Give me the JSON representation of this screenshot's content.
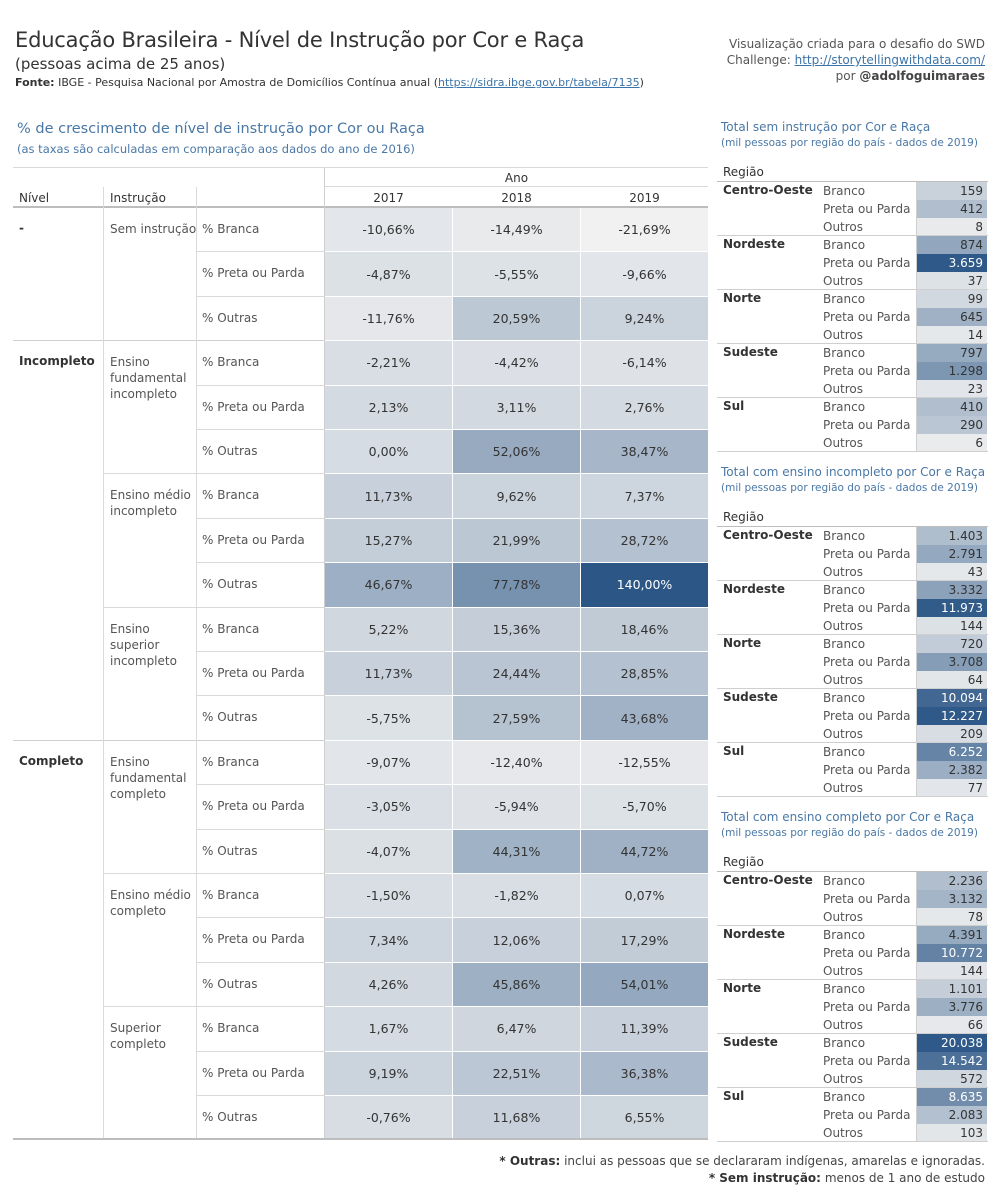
{
  "header": {
    "title": "Educação Brasileira - Nível de Instrução por Cor e Raça",
    "subtitle": "(pessoas acima de 25 anos)",
    "source_label": "Fonte:",
    "source_text": "IBGE - Pesquisa Nacional por Amostra de Domicílios Contínua anual (",
    "source_link": "https://sidra.ibge.gov.br/tabela/7135",
    "source_close": ")",
    "credit_line1": "Visualização criada para o desafio do SWD",
    "credit_line2_label": "Challenge:",
    "credit_line2_link": "http://storytellingwithdata.com/",
    "credit_line3_prefix": "por",
    "credit_line3_author": "@adolfoguimaraes"
  },
  "notes": {
    "line1_label": "* Outras:",
    "line1_text": "inclui as pessoas que se declararam indígenas, amarelas e ignoradas.",
    "line2_label": "* Sem instrução:",
    "line2_text": "menos de 1 ano de estudo"
  },
  "colors": {
    "cell_min": "#f1f1f1",
    "cell_max": "#2b5686",
    "accent": "#4a78a6"
  },
  "chart_data": [
    {
      "type": "heatmap",
      "title": "% de crescimento de nível de instrução por Cor ou Raça",
      "subtitle": "(as taxas são calculadas em comparação aos dados do ano de 2016)",
      "col_headers": {
        "nivel": "Nível",
        "instrucao": "Instrução",
        "ano": "Ano"
      },
      "years": [
        "2017",
        "2018",
        "2019"
      ],
      "groups": [
        {
          "nivel": "-",
          "items": [
            {
              "instrucao": [
                "Sem instrução"
              ],
              "rows": [
                {
                  "metric": "% Branca",
                  "values": [
                    "-10,66%",
                    "-14,49%",
                    "-21,69%"
                  ],
                  "num": [
                    -10.66,
                    -14.49,
                    -21.69
                  ]
                },
                {
                  "metric": "% Preta ou Parda",
                  "values": [
                    "-4,87%",
                    "-5,55%",
                    "-9,66%"
                  ],
                  "num": [
                    -4.87,
                    -5.55,
                    -9.66
                  ]
                },
                {
                  "metric": "% Outras",
                  "values": [
                    "-11,76%",
                    "20,59%",
                    "9,24%"
                  ],
                  "num": [
                    -11.76,
                    20.59,
                    9.24
                  ]
                }
              ]
            }
          ]
        },
        {
          "nivel": "Incompleto",
          "items": [
            {
              "instrucao": [
                "Ensino",
                "fundamental",
                "incompleto"
              ],
              "rows": [
                {
                  "metric": "% Branca",
                  "values": [
                    "-2,21%",
                    "-4,42%",
                    "-6,14%"
                  ],
                  "num": [
                    -2.21,
                    -4.42,
                    -6.14
                  ]
                },
                {
                  "metric": "% Preta ou Parda",
                  "values": [
                    "2,13%",
                    "3,11%",
                    "2,76%"
                  ],
                  "num": [
                    2.13,
                    3.11,
                    2.76
                  ]
                },
                {
                  "metric": "% Outras",
                  "values": [
                    "0,00%",
                    "52,06%",
                    "38,47%"
                  ],
                  "num": [
                    0.0,
                    52.06,
                    38.47
                  ]
                }
              ]
            },
            {
              "instrucao": [
                "Ensino médio",
                "incompleto"
              ],
              "rows": [
                {
                  "metric": "% Branca",
                  "values": [
                    "11,73%",
                    "9,62%",
                    "7,37%"
                  ],
                  "num": [
                    11.73,
                    9.62,
                    7.37
                  ]
                },
                {
                  "metric": "% Preta ou Parda",
                  "values": [
                    "15,27%",
                    "21,99%",
                    "28,72%"
                  ],
                  "num": [
                    15.27,
                    21.99,
                    28.72
                  ]
                },
                {
                  "metric": "% Outras",
                  "values": [
                    "46,67%",
                    "77,78%",
                    "140,00%"
                  ],
                  "num": [
                    46.67,
                    77.78,
                    140.0
                  ]
                }
              ]
            },
            {
              "instrucao": [
                "Ensino",
                "superior",
                "incompleto"
              ],
              "rows": [
                {
                  "metric": "% Branca",
                  "values": [
                    "5,22%",
                    "15,36%",
                    "18,46%"
                  ],
                  "num": [
                    5.22,
                    15.36,
                    18.46
                  ]
                },
                {
                  "metric": "% Preta ou Parda",
                  "values": [
                    "11,73%",
                    "24,44%",
                    "28,85%"
                  ],
                  "num": [
                    11.73,
                    24.44,
                    28.85
                  ]
                },
                {
                  "metric": "% Outras",
                  "values": [
                    "-5,75%",
                    "27,59%",
                    "43,68%"
                  ],
                  "num": [
                    -5.75,
                    27.59,
                    43.68
                  ]
                }
              ]
            }
          ]
        },
        {
          "nivel": "Completo",
          "items": [
            {
              "instrucao": [
                "Ensino",
                "fundamental",
                "completo"
              ],
              "rows": [
                {
                  "metric": "% Branca",
                  "values": [
                    "-9,07%",
                    "-12,40%",
                    "-12,55%"
                  ],
                  "num": [
                    -9.07,
                    -12.4,
                    -12.55
                  ]
                },
                {
                  "metric": "% Preta ou Parda",
                  "values": [
                    "-3,05%",
                    "-5,94%",
                    "-5,70%"
                  ],
                  "num": [
                    -3.05,
                    -5.94,
                    -5.7
                  ]
                },
                {
                  "metric": "% Outras",
                  "values": [
                    "-4,07%",
                    "44,31%",
                    "44,72%"
                  ],
                  "num": [
                    -4.07,
                    44.31,
                    44.72
                  ]
                }
              ]
            },
            {
              "instrucao": [
                "Ensino médio",
                "completo"
              ],
              "rows": [
                {
                  "metric": "% Branca",
                  "values": [
                    "-1,50%",
                    "-1,82%",
                    "0,07%"
                  ],
                  "num": [
                    -1.5,
                    -1.82,
                    0.07
                  ]
                },
                {
                  "metric": "% Preta ou Parda",
                  "values": [
                    "7,34%",
                    "12,06%",
                    "17,29%"
                  ],
                  "num": [
                    7.34,
                    12.06,
                    17.29
                  ]
                },
                {
                  "metric": "% Outras",
                  "values": [
                    "4,26%",
                    "45,86%",
                    "54,01%"
                  ],
                  "num": [
                    4.26,
                    45.86,
                    54.01
                  ]
                }
              ]
            },
            {
              "instrucao": [
                "Superior",
                "completo"
              ],
              "rows": [
                {
                  "metric": "% Branca",
                  "values": [
                    "1,67%",
                    "6,47%",
                    "11,39%"
                  ],
                  "num": [
                    1.67,
                    6.47,
                    11.39
                  ]
                },
                {
                  "metric": "% Preta ou Parda",
                  "values": [
                    "9,19%",
                    "22,51%",
                    "36,38%"
                  ],
                  "num": [
                    9.19,
                    22.51,
                    36.38
                  ]
                },
                {
                  "metric": "% Outras",
                  "values": [
                    "-0,76%",
                    "11,68%",
                    "6,55%"
                  ],
                  "num": [
                    -0.76,
                    11.68,
                    6.55
                  ]
                }
              ]
            }
          ]
        }
      ]
    },
    {
      "type": "heatmap",
      "title": "Total sem instrução por Cor e Raça",
      "subtitle": "(mil pessoas por região do país - dados de 2019)",
      "region_header": "Região",
      "regions": [
        {
          "name": "Centro-Oeste",
          "rows": [
            {
              "cat": "Branco",
              "value": "159",
              "num": 159
            },
            {
              "cat": "Preta ou Parda",
              "value": "412",
              "num": 412
            },
            {
              "cat": "Outros",
              "value": "8",
              "num": 8
            }
          ]
        },
        {
          "name": "Nordeste",
          "rows": [
            {
              "cat": "Branco",
              "value": "874",
              "num": 874
            },
            {
              "cat": "Preta ou Parda",
              "value": "3.659",
              "num": 3659
            },
            {
              "cat": "Outros",
              "value": "37",
              "num": 37
            }
          ]
        },
        {
          "name": "Norte",
          "rows": [
            {
              "cat": "Branco",
              "value": "99",
              "num": 99
            },
            {
              "cat": "Preta ou Parda",
              "value": "645",
              "num": 645
            },
            {
              "cat": "Outros",
              "value": "14",
              "num": 14
            }
          ]
        },
        {
          "name": "Sudeste",
          "rows": [
            {
              "cat": "Branco",
              "value": "797",
              "num": 797
            },
            {
              "cat": "Preta ou Parda",
              "value": "1.298",
              "num": 1298
            },
            {
              "cat": "Outros",
              "value": "23",
              "num": 23
            }
          ]
        },
        {
          "name": "Sul",
          "rows": [
            {
              "cat": "Branco",
              "value": "410",
              "num": 410
            },
            {
              "cat": "Preta ou Parda",
              "value": "290",
              "num": 290
            },
            {
              "cat": "Outros",
              "value": "6",
              "num": 6
            }
          ]
        }
      ]
    },
    {
      "type": "heatmap",
      "title": "Total com ensino incompleto por Cor e Raça",
      "subtitle": "(mil pessoas por região do país - dados de 2019)",
      "region_header": "Região",
      "regions": [
        {
          "name": "Centro-Oeste",
          "rows": [
            {
              "cat": "Branco",
              "value": "1.403",
              "num": 1403
            },
            {
              "cat": "Preta ou Parda",
              "value": "2.791",
              "num": 2791
            },
            {
              "cat": "Outros",
              "value": "43",
              "num": 43
            }
          ]
        },
        {
          "name": "Nordeste",
          "rows": [
            {
              "cat": "Branco",
              "value": "3.332",
              "num": 3332
            },
            {
              "cat": "Preta ou Parda",
              "value": "11.973",
              "num": 11973
            },
            {
              "cat": "Outros",
              "value": "144",
              "num": 144
            }
          ]
        },
        {
          "name": "Norte",
          "rows": [
            {
              "cat": "Branco",
              "value": "720",
              "num": 720
            },
            {
              "cat": "Preta ou Parda",
              "value": "3.708",
              "num": 3708
            },
            {
              "cat": "Outros",
              "value": "64",
              "num": 64
            }
          ]
        },
        {
          "name": "Sudeste",
          "rows": [
            {
              "cat": "Branco",
              "value": "10.094",
              "num": 10094
            },
            {
              "cat": "Preta ou Parda",
              "value": "12.227",
              "num": 12227
            },
            {
              "cat": "Outros",
              "value": "209",
              "num": 209
            }
          ]
        },
        {
          "name": "Sul",
          "rows": [
            {
              "cat": "Branco",
              "value": "6.252",
              "num": 6252
            },
            {
              "cat": "Preta ou Parda",
              "value": "2.382",
              "num": 2382
            },
            {
              "cat": "Outros",
              "value": "77",
              "num": 77
            }
          ]
        }
      ]
    },
    {
      "type": "heatmap",
      "title": "Total com ensino completo por Cor e Raça",
      "subtitle": "(mil pessoas por região do país - dados de 2019)",
      "region_header": "Região",
      "regions": [
        {
          "name": "Centro-Oeste",
          "rows": [
            {
              "cat": "Branco",
              "value": "2.236",
              "num": 2236
            },
            {
              "cat": "Preta ou Parda",
              "value": "3.132",
              "num": 3132
            },
            {
              "cat": "Outros",
              "value": "78",
              "num": 78
            }
          ]
        },
        {
          "name": "Nordeste",
          "rows": [
            {
              "cat": "Branco",
              "value": "4.391",
              "num": 4391
            },
            {
              "cat": "Preta ou Parda",
              "value": "10.772",
              "num": 10772
            },
            {
              "cat": "Outros",
              "value": "144",
              "num": 144
            }
          ]
        },
        {
          "name": "Norte",
          "rows": [
            {
              "cat": "Branco",
              "value": "1.101",
              "num": 1101
            },
            {
              "cat": "Preta ou Parda",
              "value": "3.776",
              "num": 3776
            },
            {
              "cat": "Outros",
              "value": "66",
              "num": 66
            }
          ]
        },
        {
          "name": "Sudeste",
          "rows": [
            {
              "cat": "Branco",
              "value": "20.038",
              "num": 20038
            },
            {
              "cat": "Preta ou Parda",
              "value": "14.542",
              "num": 14542
            },
            {
              "cat": "Outros",
              "value": "572",
              "num": 572
            }
          ]
        },
        {
          "name": "Sul",
          "rows": [
            {
              "cat": "Branco",
              "value": "8.635",
              "num": 8635
            },
            {
              "cat": "Preta ou Parda",
              "value": "2.083",
              "num": 2083
            },
            {
              "cat": "Outros",
              "value": "103",
              "num": 103
            }
          ]
        }
      ]
    }
  ]
}
